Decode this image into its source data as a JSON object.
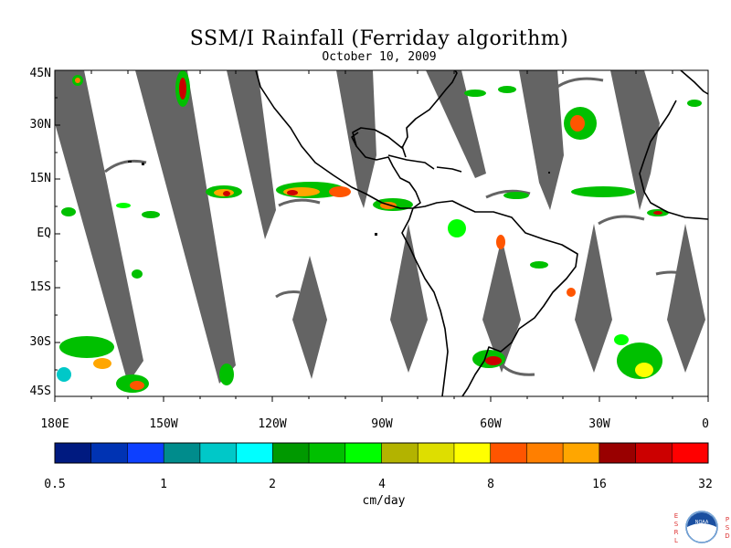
{
  "title": "SSM/I Rainfall (Ferriday algorithm)",
  "subtitle": "October 10, 2009",
  "y_axis_labels": [
    "45N",
    "30N",
    "15N",
    "EQ",
    "15S",
    "30S",
    "45S"
  ],
  "x_axis_labels": [
    "180E",
    "150W",
    "120W",
    "90W",
    "60W",
    "30W",
    "0"
  ],
  "colorbar": {
    "tick_labels": [
      "0.5",
      "1",
      "2",
      "4",
      "8",
      "16",
      "32"
    ],
    "units": "cm/day",
    "colors": [
      "#001a80",
      "#0033b3",
      "#0d40ff",
      "#008c8c",
      "#00c8c8",
      "#00ffff",
      "#009900",
      "#00c000",
      "#00ff00",
      "#b3b300",
      "#dede00",
      "#ffff00",
      "#ff5500",
      "#ff7f00",
      "#ffa600",
      "#990000",
      "#cc0000",
      "#ff0000"
    ]
  },
  "logo": {
    "name": "NOAA",
    "left_letters": "ESRL",
    "right_letters": "PSD"
  },
  "colors": {
    "swath_gap": "#646464",
    "coastline": "#000000",
    "background": "#ffffff"
  }
}
